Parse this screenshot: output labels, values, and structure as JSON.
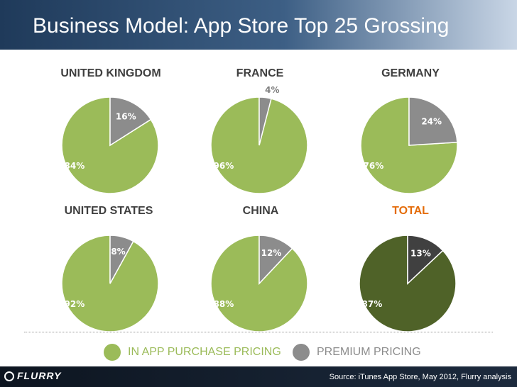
{
  "title": "Business Model: App Store Top 25 Grossing",
  "colors": {
    "in_app": "#9bbb59",
    "premium": "#8c8c8c",
    "total_in_app": "#4f6228",
    "total_premium": "#404040",
    "label_default": "#3f3f3f",
    "label_total": "#e46c0a"
  },
  "chart_data": [
    {
      "type": "pie",
      "title": "UNITED KINGDOM",
      "slices": [
        {
          "label": "IN APP PURCHASE PRICING",
          "value": 84,
          "text": "84%"
        },
        {
          "label": "PREMIUM PRICING",
          "value": 16,
          "text": "16%"
        }
      ]
    },
    {
      "type": "pie",
      "title": "FRANCE",
      "slices": [
        {
          "label": "IN APP PURCHASE PRICING",
          "value": 96,
          "text": "96%"
        },
        {
          "label": "PREMIUM PRICING",
          "value": 4,
          "text": "4%"
        }
      ]
    },
    {
      "type": "pie",
      "title": "GERMANY",
      "slices": [
        {
          "label": "IN APP PURCHASE PRICING",
          "value": 76,
          "text": "76%"
        },
        {
          "label": "PREMIUM PRICING",
          "value": 24,
          "text": "24%"
        }
      ]
    },
    {
      "type": "pie",
      "title": "UNITED STATES",
      "slices": [
        {
          "label": "IN APP PURCHASE PRICING",
          "value": 92,
          "text": "92%"
        },
        {
          "label": "PREMIUM PRICING",
          "value": 8,
          "text": "8%"
        }
      ]
    },
    {
      "type": "pie",
      "title": "CHINA",
      "slices": [
        {
          "label": "IN APP PURCHASE PRICING",
          "value": 88,
          "text": "88%"
        },
        {
          "label": "PREMIUM PRICING",
          "value": 12,
          "text": "12%"
        }
      ]
    },
    {
      "type": "pie",
      "title": "TOTAL",
      "slices": [
        {
          "label": "IN APP PURCHASE PRICING",
          "value": 87,
          "text": "87%"
        },
        {
          "label": "PREMIUM PRICING",
          "value": 13,
          "text": "13%"
        }
      ]
    }
  ],
  "legend": {
    "in_app_label": "IN APP PURCHASE PRICING",
    "premium_label": "PREMIUM PRICING"
  },
  "footer": {
    "logo": "FLURRY",
    "source": "Source: iTunes App Store, May 2012, Flurry analysis"
  }
}
